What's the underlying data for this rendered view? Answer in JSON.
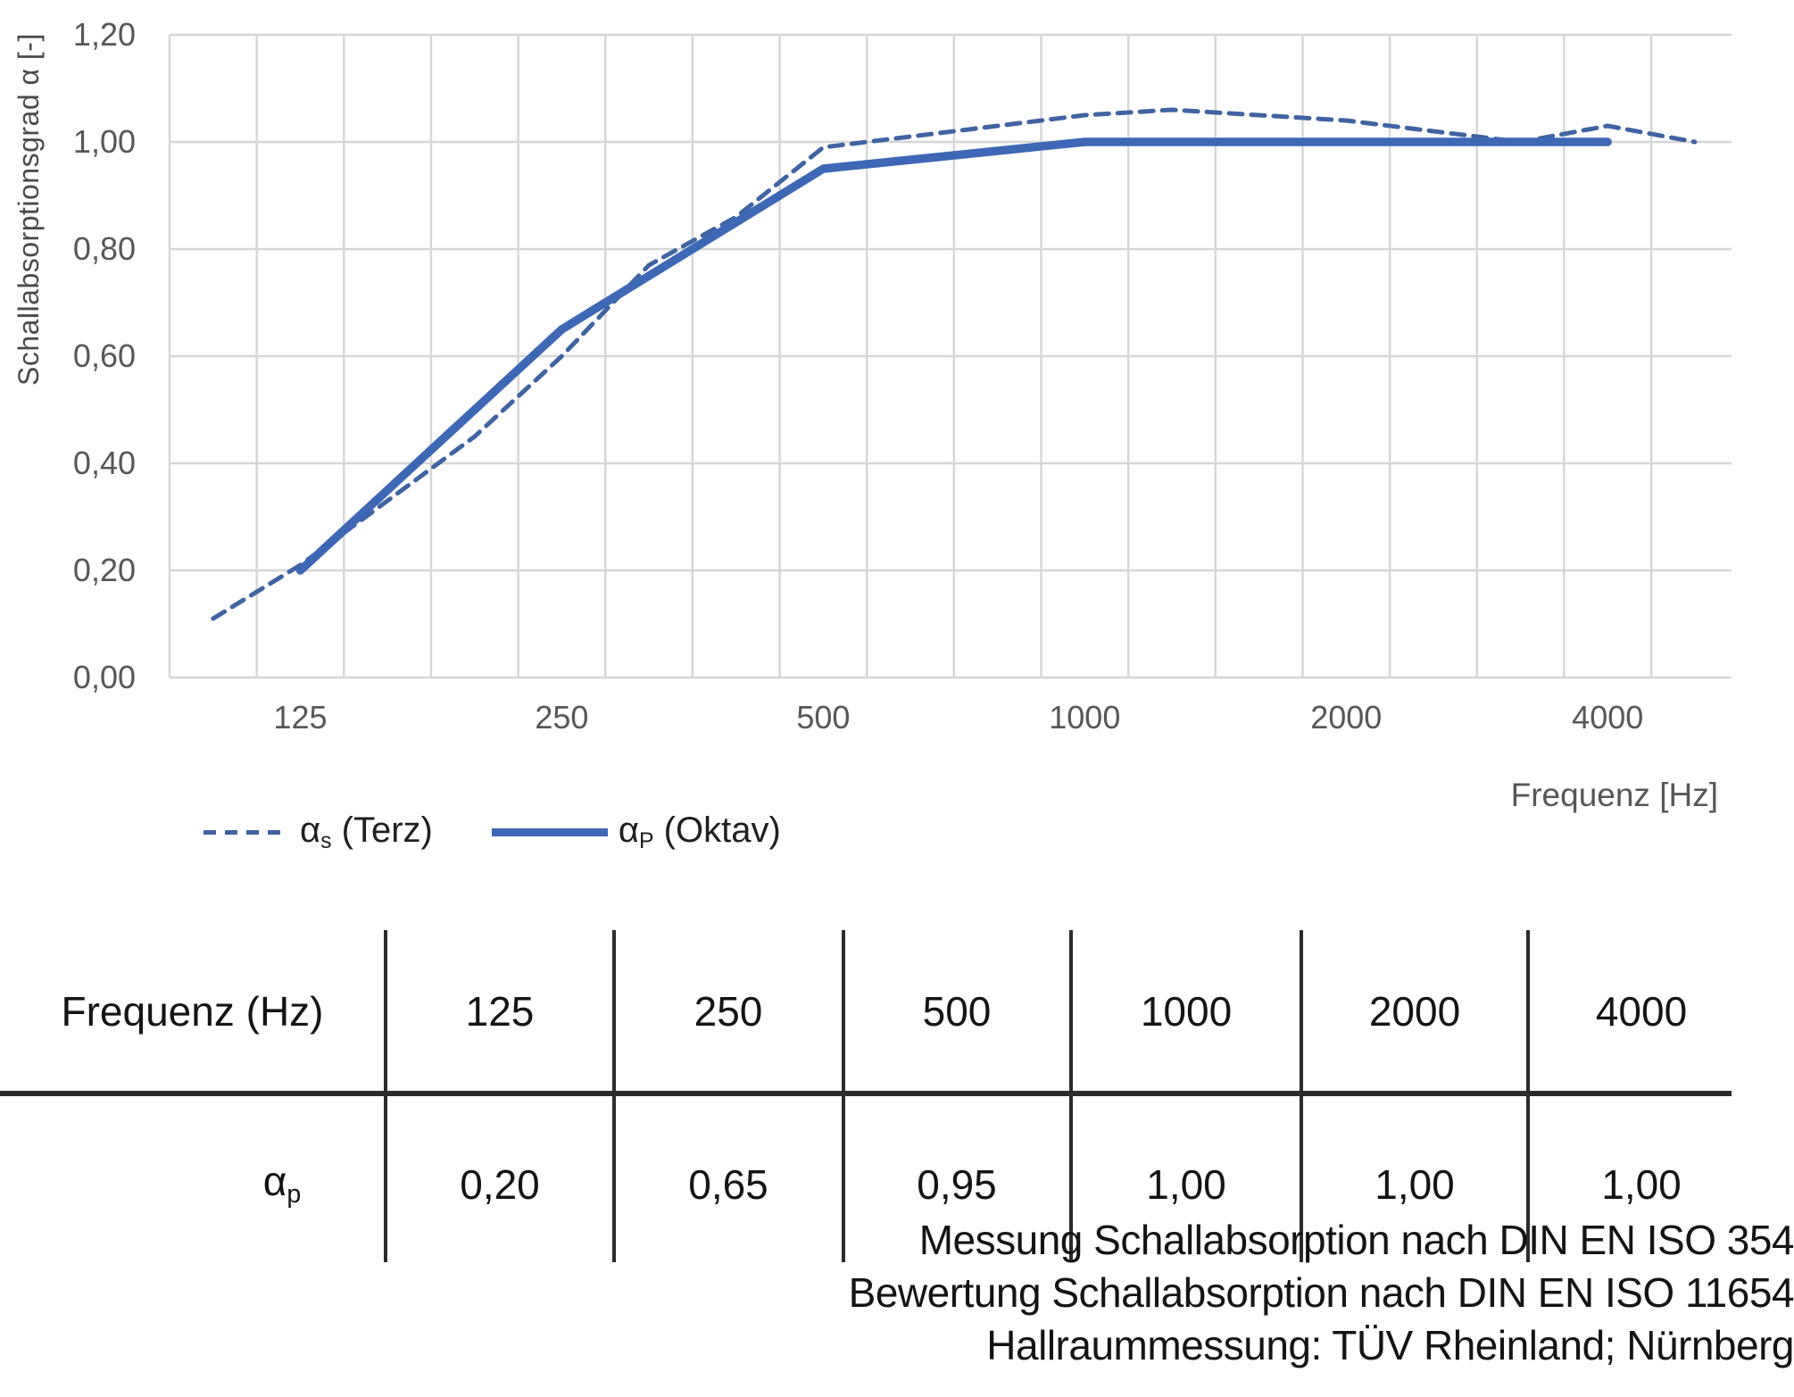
{
  "colors": {
    "series_dashed": "#3f63a3",
    "series_solid": "#3e68b5",
    "grid": "#d6d6d6",
    "axis_text": "#575757",
    "ink": "#141414"
  },
  "chart": {
    "y_axis_title": "Schallabsorptionsgrad α [-]",
    "x_axis_title": "Frequenz [Hz]",
    "y_tick_labels": [
      "1,20",
      "1,00",
      "0,80",
      "0,60",
      "0,40",
      "0,20",
      "0,00"
    ],
    "x_tick_labels": [
      "125",
      "250",
      "500",
      "1000",
      "2000",
      "4000"
    ],
    "legend": {
      "items": [
        {
          "sym": "α",
          "sub": "s",
          "rest": " (Terz)",
          "style": "dashed"
        },
        {
          "sym": "α",
          "sub": "P",
          "rest": " (Oktav)",
          "style": "solid"
        }
      ]
    }
  },
  "chart_data": {
    "type": "line",
    "title": "",
    "xlabel": "Frequenz [Hz]",
    "ylabel": "Schallabsorptionsgrad α [-]",
    "x_scale": "logarithmic (1/3-octave bands, equal spacing per band)",
    "x_bands_hz": [
      100,
      125,
      160,
      200,
      250,
      315,
      400,
      500,
      630,
      800,
      1000,
      1250,
      1600,
      2000,
      2500,
      3150,
      4000,
      5000
    ],
    "x_tick_labels_hz": [
      125,
      250,
      500,
      1000,
      2000,
      4000
    ],
    "ylim": [
      0.0,
      1.2
    ],
    "y_tick_step": 0.2,
    "grid": true,
    "legend_position": "bottom-left",
    "series": [
      {
        "name": "αs (Terz)",
        "style": "dashed",
        "color": "#3f63a3",
        "frequencies_hz": [
          100,
          125,
          160,
          200,
          250,
          315,
          400,
          500,
          630,
          800,
          1000,
          1250,
          1600,
          2000,
          2500,
          3150,
          4000,
          5000
        ],
        "values": [
          0.11,
          0.21,
          0.33,
          0.45,
          0.6,
          0.77,
          0.86,
          0.99,
          1.01,
          1.03,
          1.05,
          1.06,
          1.05,
          1.04,
          1.02,
          1.0,
          1.03,
          1.0
        ]
      },
      {
        "name": "αP (Oktav)",
        "style": "solid",
        "color": "#3e68b5",
        "frequencies_hz": [
          125,
          250,
          500,
          1000,
          2000,
          4000
        ],
        "values": [
          0.2,
          0.65,
          0.95,
          1.0,
          1.0,
          1.0
        ]
      }
    ]
  },
  "table": {
    "header_row_label": "Frequenz (Hz)",
    "value_row_label_sym": "α",
    "value_row_label_sub": "p",
    "frequencies": [
      "125",
      "250",
      "500",
      "1000",
      "2000",
      "4000"
    ],
    "values": [
      "0,20",
      "0,65",
      "0,95",
      "1,00",
      "1,00",
      "1,00"
    ]
  },
  "footer": {
    "lines": [
      "Messung Schallabsorption nach DIN EN ISO 354",
      "Bewertung Schallabsorption nach DIN EN ISO 11654",
      "Hallraummessung: TÜV Rheinland; Nürnberg"
    ]
  }
}
